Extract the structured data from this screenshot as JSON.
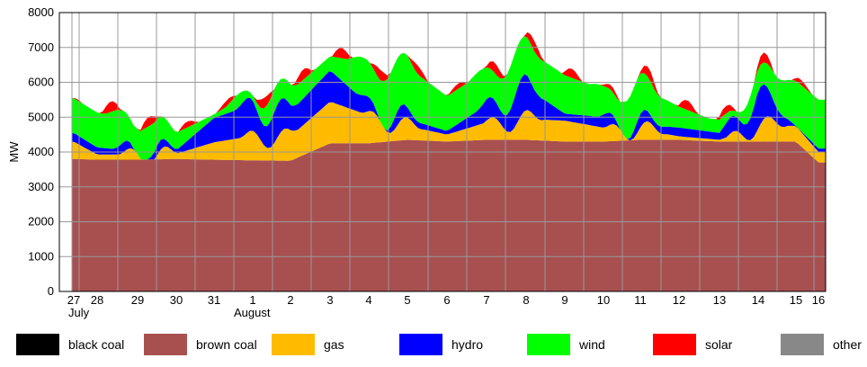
{
  "chart_data": {
    "type": "area",
    "title": "",
    "xlabel": "",
    "ylabel": "MW",
    "ylim": [
      0,
      8000
    ],
    "yticks": [
      "0",
      "1000",
      "2000",
      "3000",
      "4000",
      "5000",
      "6000",
      "7000",
      "8000"
    ],
    "x_tick_labels": [
      "27",
      "28",
      "29",
      "30",
      "31",
      "1",
      "2",
      "3",
      "4",
      "5",
      "6",
      "7",
      "8",
      "9",
      "10",
      "11",
      "12",
      "13",
      "14",
      "15",
      "16"
    ],
    "month_labels": [
      "July",
      "August"
    ],
    "x_days": [
      27,
      28,
      29,
      30,
      31,
      1,
      2,
      3,
      4,
      5,
      6,
      7,
      8,
      9,
      10,
      11,
      12,
      13,
      14,
      15,
      16
    ],
    "grid": true,
    "legend_position": "bottom",
    "series": [
      {
        "name": "black coal",
        "color": "#000000",
        "values": [
          0,
          0,
          0,
          0,
          0,
          0,
          0,
          0,
          0,
          0,
          0,
          0,
          0,
          0,
          0,
          0,
          0,
          0,
          0,
          0,
          0
        ]
      },
      {
        "name": "brown coal",
        "color": "#a85050",
        "values": [
          3800,
          3780,
          3780,
          3800,
          3780,
          3760,
          3750,
          4250,
          4250,
          4350,
          4300,
          4350,
          4350,
          4300,
          4300,
          4350,
          4350,
          4300,
          4300,
          4300,
          3700
        ]
      },
      {
        "name": "gas",
        "color": "#ffbb00",
        "values": [
          500,
          150,
          150,
          150,
          500,
          700,
          700,
          1200,
          800,
          400,
          200,
          500,
          600,
          600,
          400,
          300,
          100,
          50,
          450,
          450,
          300
        ]
      },
      {
        "name": "hydro",
        "color": "#0000ff",
        "values": [
          250,
          200,
          100,
          100,
          700,
          900,
          700,
          900,
          300,
          200,
          100,
          500,
          900,
          200,
          300,
          150,
          250,
          200,
          900,
          0,
          100
        ]
      },
      {
        "name": "wind",
        "color": "#00ff00",
        "values": [
          1000,
          1000,
          900,
          500,
          100,
          400,
          600,
          400,
          1200,
          1500,
          1000,
          1000,
          1100,
          1100,
          800,
          1100,
          600,
          300,
          500,
          1300,
          1400
        ]
      },
      {
        "name": "solar",
        "color": "#ff0000",
        "values": [
          0,
          300,
          300,
          200,
          100,
          300,
          300,
          300,
          300,
          300,
          100,
          300,
          300,
          300,
          100,
          300,
          300,
          200,
          300,
          200,
          0
        ]
      },
      {
        "name": "other",
        "color": "#888888",
        "values": [
          0,
          0,
          0,
          0,
          0,
          0,
          0,
          0,
          0,
          0,
          0,
          0,
          0,
          0,
          0,
          0,
          0,
          0,
          0,
          0,
          0
        ]
      }
    ]
  }
}
